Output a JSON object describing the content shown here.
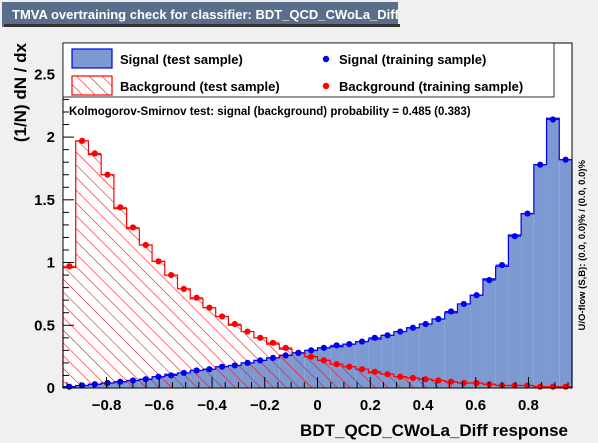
{
  "window_title": "TMVA overtraining check for classifier: BDT_QCD_CWoLa_Diff",
  "colors": {
    "signal_fill": "#7d99d1",
    "signal_line": "#0000ee",
    "signal_marker": "#0000ee",
    "background_hatch": "#ff0000",
    "background_marker": "#ff0000",
    "title_box": "#5a6e8c",
    "frame_background": "#ffffff"
  },
  "chart_data": {
    "type": "histogram",
    "xlabel": "BDT_QCD_CWoLa_Diff response",
    "ylabel": "(1/N) dN / dx",
    "xlim": [
      -0.965,
      0.965
    ],
    "ylim": [
      0,
      2.75
    ],
    "x_ticks": [
      "−0.8",
      "−0.6",
      "−0.4",
      "−0.2",
      "0",
      "0.2",
      "0.4",
      "0.6",
      "0.8"
    ],
    "x_tick_values": [
      -0.8,
      -0.6,
      -0.4,
      -0.2,
      0,
      0.2,
      0.4,
      0.6,
      0.8
    ],
    "y_ticks": [
      "0",
      "0.5",
      "1",
      "1.5",
      "2",
      "2.5"
    ],
    "y_tick_values": [
      0,
      0.5,
      1,
      1.5,
      2,
      2.5
    ],
    "bins": {
      "count": 40,
      "low": -0.965,
      "high": 0.965
    },
    "series": [
      {
        "name": "Signal (test sample)",
        "style": "filled histogram",
        "values": [
          0.01,
          0.02,
          0.03,
          0.04,
          0.05,
          0.06,
          0.07,
          0.09,
          0.11,
          0.12,
          0.14,
          0.15,
          0.17,
          0.18,
          0.2,
          0.22,
          0.24,
          0.26,
          0.28,
          0.3,
          0.32,
          0.33,
          0.35,
          0.37,
          0.39,
          0.42,
          0.45,
          0.48,
          0.51,
          0.55,
          0.6,
          0.67,
          0.74,
          0.87,
          0.97,
          1.22,
          1.39,
          1.78,
          2.15,
          1.82
        ]
      },
      {
        "name": "Background (test sample)",
        "style": "hatched histogram",
        "values": [
          0.96,
          1.97,
          1.86,
          1.7,
          1.43,
          1.27,
          1.14,
          1.01,
          0.9,
          0.79,
          0.71,
          0.64,
          0.57,
          0.5,
          0.45,
          0.4,
          0.35,
          0.31,
          0.28,
          0.25,
          0.22,
          0.19,
          0.17,
          0.15,
          0.12,
          0.11,
          0.09,
          0.08,
          0.07,
          0.06,
          0.05,
          0.04,
          0.04,
          0.03,
          0.02,
          0.02,
          0.02,
          0.01,
          0.01,
          0.01
        ]
      },
      {
        "name": "Signal (training sample)",
        "style": "markers",
        "values": [
          0.01,
          0.02,
          0.03,
          0.04,
          0.05,
          0.06,
          0.07,
          0.09,
          0.1,
          0.12,
          0.14,
          0.15,
          0.17,
          0.18,
          0.2,
          0.22,
          0.24,
          0.26,
          0.28,
          0.3,
          0.32,
          0.34,
          0.35,
          0.37,
          0.4,
          0.42,
          0.45,
          0.48,
          0.51,
          0.55,
          0.61,
          0.67,
          0.74,
          0.86,
          0.98,
          1.21,
          1.39,
          1.78,
          2.14,
          1.82
        ]
      },
      {
        "name": "Background (training sample)",
        "style": "markers",
        "values": [
          0.97,
          1.97,
          1.87,
          1.7,
          1.44,
          1.28,
          1.14,
          1.01,
          0.9,
          0.79,
          0.72,
          0.64,
          0.57,
          0.51,
          0.45,
          0.4,
          0.36,
          0.32,
          0.28,
          0.25,
          0.22,
          0.19,
          0.17,
          0.15,
          0.13,
          0.11,
          0.09,
          0.08,
          0.07,
          0.06,
          0.05,
          0.04,
          0.04,
          0.03,
          0.02,
          0.02,
          0.02,
          0.01,
          0.01,
          0.01
        ]
      }
    ],
    "legend": {
      "placement": "top",
      "entries": [
        "Signal (test sample)",
        "Signal (training sample)",
        "Background (test sample)",
        "Background (training sample)"
      ]
    },
    "annotation": "Kolmogorov-Smirnov test: signal (background) probability = 0.485 (0.383)",
    "side_label": "U/O-flow (S,B): (0.0, 0.0)% / (0.0, 0.0)%",
    "grid": false
  }
}
